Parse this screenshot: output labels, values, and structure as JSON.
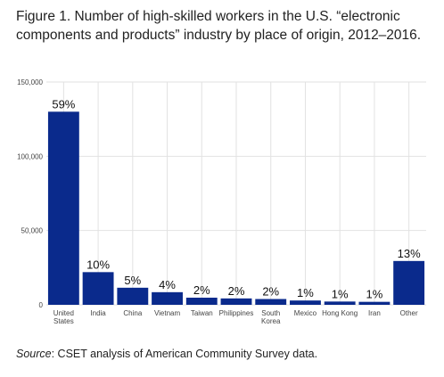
{
  "title": "Figure 1. Number of high-skilled workers in the U.S. “electronic components and products” industry by place of origin, 2012–2016.",
  "source": {
    "label": "Source",
    "text": ": CSET analysis of American Community Survey data."
  },
  "colors": {
    "bar": "#0a2a8c",
    "grid": "#e2e2e2"
  },
  "chart_data": {
    "type": "bar",
    "title": "",
    "xlabel": "",
    "ylabel": "",
    "ylim": [
      0,
      150000
    ],
    "yticks": [
      0,
      50000,
      100000,
      150000
    ],
    "ytick_labels": [
      "0",
      "50,000",
      "100,000",
      "150,000"
    ],
    "grid": true,
    "categories": [
      [
        "United",
        "States"
      ],
      [
        "India"
      ],
      [
        "China"
      ],
      [
        "Vietnam"
      ],
      [
        "Taiwan"
      ],
      [
        "Philippines"
      ],
      [
        "South",
        "Korea"
      ],
      [
        "Mexico"
      ],
      [
        "Hong Kong"
      ],
      [
        "Iran"
      ],
      [
        "Other"
      ]
    ],
    "values": [
      130000,
      22000,
      11500,
      8500,
      4800,
      4300,
      3900,
      2900,
      2200,
      2000,
      29500
    ],
    "data_labels": [
      "59%",
      "10%",
      "5%",
      "4%",
      "2%",
      "2%",
      "2%",
      "1%",
      "1%",
      "1%",
      "13%"
    ]
  }
}
